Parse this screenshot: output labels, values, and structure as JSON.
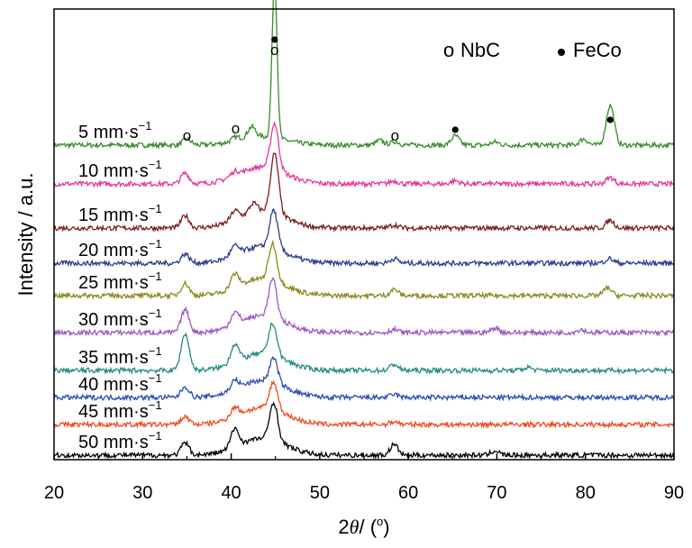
{
  "chart_data": {
    "type": "line",
    "xlabel_prefix": "2",
    "xlabel_theta": "θ",
    "xlabel_suffix": "/ (",
    "xlabel_degree": "o",
    "xlabel_close": ")",
    "ylabel": "Intensity / a.u.",
    "xlim": [
      20,
      90
    ],
    "xticks": [
      20,
      30,
      40,
      50,
      60,
      70,
      80,
      90
    ],
    "grid": false,
    "legend_position": "top-right",
    "legend": [
      {
        "marker": "o",
        "label": "NbC",
        "marker_type": "open-circle"
      },
      {
        "marker": "●",
        "label": "FeCo",
        "marker_type": "filled-circle"
      }
    ],
    "label_unit": "mm·s",
    "label_exponent": "−1",
    "series": [
      {
        "name": "5",
        "color": "#3a8a2e",
        "peaks": [
          [
            35.0,
            0.2
          ],
          [
            40.5,
            0.12
          ],
          [
            42.3,
            0.35
          ],
          [
            44.9,
            5.2
          ],
          [
            56.8,
            0.15
          ],
          [
            58.5,
            0.12
          ],
          [
            65.3,
            0.3
          ],
          [
            69.8,
            0.1
          ],
          [
            79.8,
            0.2
          ],
          [
            82.8,
            1.3
          ]
        ]
      },
      {
        "name": "10",
        "color": "#e8359a",
        "peaks": [
          [
            34.8,
            0.35
          ],
          [
            40.4,
            0.15
          ],
          [
            44.9,
            1.5
          ],
          [
            58.4,
            0.1
          ],
          [
            65.3,
            0.1
          ],
          [
            82.8,
            0.2
          ]
        ]
      },
      {
        "name": "15",
        "color": "#7a1e1e",
        "peaks": [
          [
            34.8,
            0.4
          ],
          [
            40.4,
            0.3
          ],
          [
            42.5,
            0.3
          ],
          [
            44.9,
            1.95
          ],
          [
            58.4,
            0.1
          ],
          [
            82.8,
            0.25
          ]
        ]
      },
      {
        "name": "20",
        "color": "#2b3a8c",
        "peaks": [
          [
            34.8,
            0.3
          ],
          [
            40.4,
            0.3
          ],
          [
            44.8,
            1.25
          ],
          [
            58.4,
            0.15
          ],
          [
            82.7,
            0.15
          ]
        ]
      },
      {
        "name": "25",
        "color": "#8a8a1e",
        "peaks": [
          [
            34.8,
            0.4
          ],
          [
            40.4,
            0.45
          ],
          [
            44.7,
            1.2
          ],
          [
            58.4,
            0.2
          ],
          [
            82.5,
            0.25
          ]
        ]
      },
      {
        "name": "30",
        "color": "#9b59c0",
        "peaks": [
          [
            34.8,
            0.75
          ],
          [
            40.4,
            0.4
          ],
          [
            44.7,
            1.25
          ],
          [
            58.4,
            0.1
          ],
          [
            69.8,
            0.15
          ],
          [
            79.5,
            0.1
          ]
        ]
      },
      {
        "name": "35",
        "color": "#238b80",
        "peaks": [
          [
            34.8,
            1.2
          ],
          [
            40.4,
            0.6
          ],
          [
            44.7,
            1.05
          ],
          [
            58.4,
            0.2
          ],
          [
            73.5,
            0.1
          ]
        ]
      },
      {
        "name": "40",
        "color": "#2a4bb5",
        "peaks": [
          [
            34.8,
            0.35
          ],
          [
            40.4,
            0.3
          ],
          [
            44.8,
            0.8
          ],
          [
            58.4,
            0.1
          ]
        ]
      },
      {
        "name": "45",
        "color": "#f04a1e",
        "peaks": [
          [
            34.8,
            0.25
          ],
          [
            40.4,
            0.3
          ],
          [
            44.8,
            0.9
          ],
          [
            58.4,
            0.1
          ]
        ]
      },
      {
        "name": "50",
        "color": "#000000",
        "peaks": [
          [
            34.8,
            0.4
          ],
          [
            40.4,
            0.6
          ],
          [
            44.8,
            1.25
          ],
          [
            58.4,
            0.35
          ],
          [
            69.8,
            0.15
          ]
        ]
      }
    ],
    "annotations": [
      {
        "symbol": "o",
        "x": 35.0,
        "series": "5"
      },
      {
        "symbol": "o",
        "x": 40.5,
        "series": "5"
      },
      {
        "symbol": "o",
        "x": 58.5,
        "series": "5"
      },
      {
        "symbol": "●",
        "x": 65.3,
        "series": "5"
      },
      {
        "symbol": "●",
        "x": 82.8,
        "series": "5"
      },
      {
        "symbol": "o",
        "x": 44.9,
        "series": "5"
      },
      {
        "symbol": "●",
        "x": 44.9,
        "series": "5"
      }
    ]
  }
}
